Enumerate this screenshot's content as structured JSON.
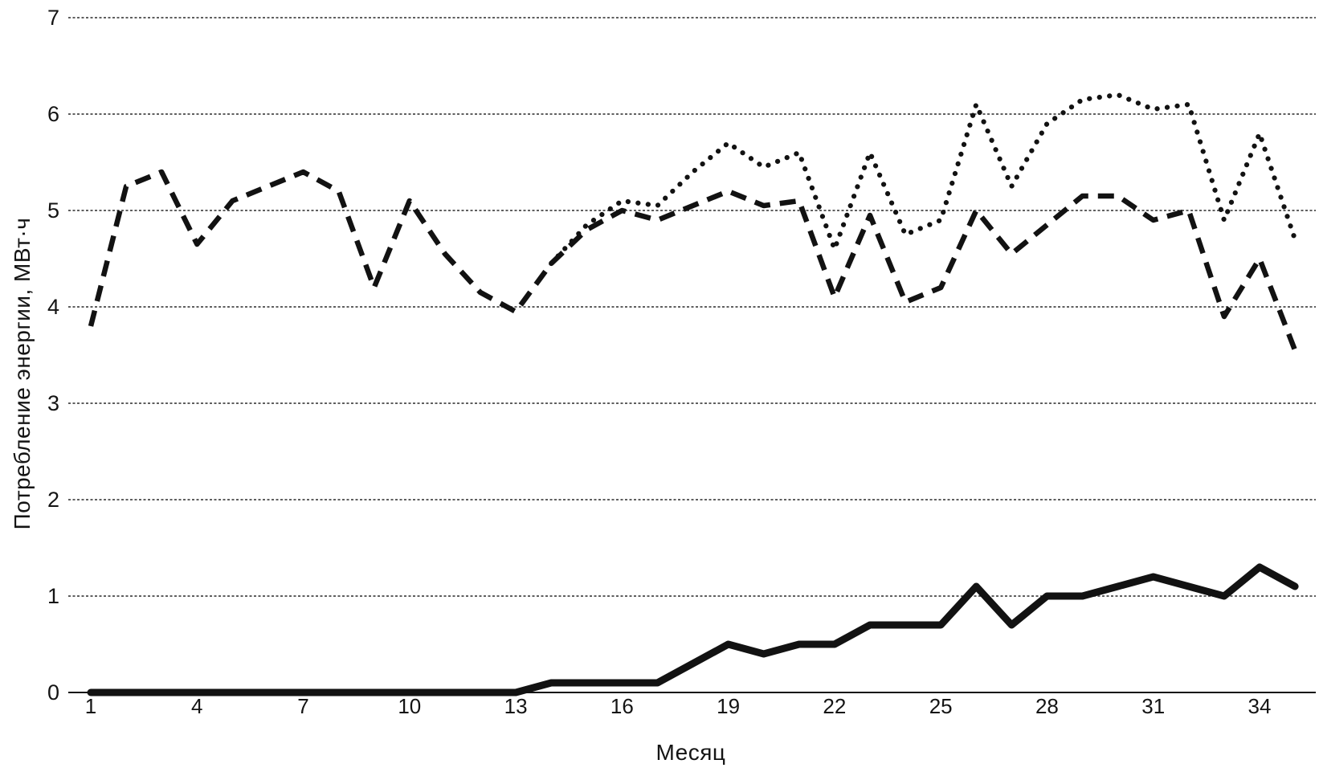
{
  "figure": {
    "background": "#ffffff",
    "ink_color": "#121212",
    "grid_color": "#2a2a2a"
  },
  "chart_data": {
    "type": "line",
    "xlabel": "Месяц",
    "ylabel": "Потребление энергии, МВт·ч",
    "x": [
      1,
      2,
      3,
      4,
      5,
      6,
      7,
      8,
      9,
      10,
      11,
      12,
      13,
      14,
      15,
      16,
      17,
      18,
      19,
      20,
      21,
      22,
      23,
      24,
      25,
      26,
      27,
      28,
      29,
      30,
      31,
      32,
      33,
      34,
      35
    ],
    "x_tick_labels": [
      1,
      4,
      7,
      10,
      13,
      16,
      19,
      22,
      25,
      28,
      31,
      34
    ],
    "y_ticks": [
      0,
      1,
      2,
      3,
      4,
      5,
      6,
      7
    ],
    "ylim": [
      0,
      7
    ],
    "xlim": [
      1,
      35
    ],
    "grid": "horizontal-dotted",
    "legend_position": "none",
    "series": [
      {
        "name": "dashed-series",
        "style": "dashed",
        "values": [
          3.8,
          5.25,
          5.4,
          4.65,
          5.1,
          5.25,
          5.4,
          5.2,
          4.2,
          5.1,
          4.55,
          4.15,
          3.95,
          4.45,
          4.8,
          5.0,
          4.9,
          5.05,
          5.2,
          5.05,
          5.1,
          4.1,
          4.95,
          4.05,
          4.2,
          5.0,
          4.55,
          4.85,
          5.15,
          5.15,
          4.9,
          5.0,
          3.9,
          4.5,
          3.55
        ]
      },
      {
        "name": "dotted-series",
        "style": "dotted",
        "values": [
          null,
          null,
          null,
          null,
          null,
          null,
          null,
          null,
          null,
          null,
          null,
          null,
          null,
          4.45,
          4.85,
          5.1,
          5.05,
          5.4,
          5.7,
          5.45,
          5.6,
          4.6,
          5.6,
          4.75,
          4.9,
          6.1,
          5.25,
          5.9,
          6.15,
          6.2,
          6.05,
          6.1,
          4.9,
          5.8,
          4.7
        ]
      },
      {
        "name": "solid-series",
        "style": "solid",
        "values": [
          0,
          0,
          0,
          0,
          0,
          0,
          0,
          0,
          0,
          0,
          0,
          0,
          0,
          0.1,
          0.1,
          0.1,
          0.1,
          0.3,
          0.5,
          0.4,
          0.5,
          0.5,
          0.7,
          0.7,
          0.7,
          1.1,
          0.7,
          1.0,
          1.0,
          1.1,
          1.2,
          1.1,
          1.0,
          1.3,
          1.1
        ]
      }
    ]
  }
}
